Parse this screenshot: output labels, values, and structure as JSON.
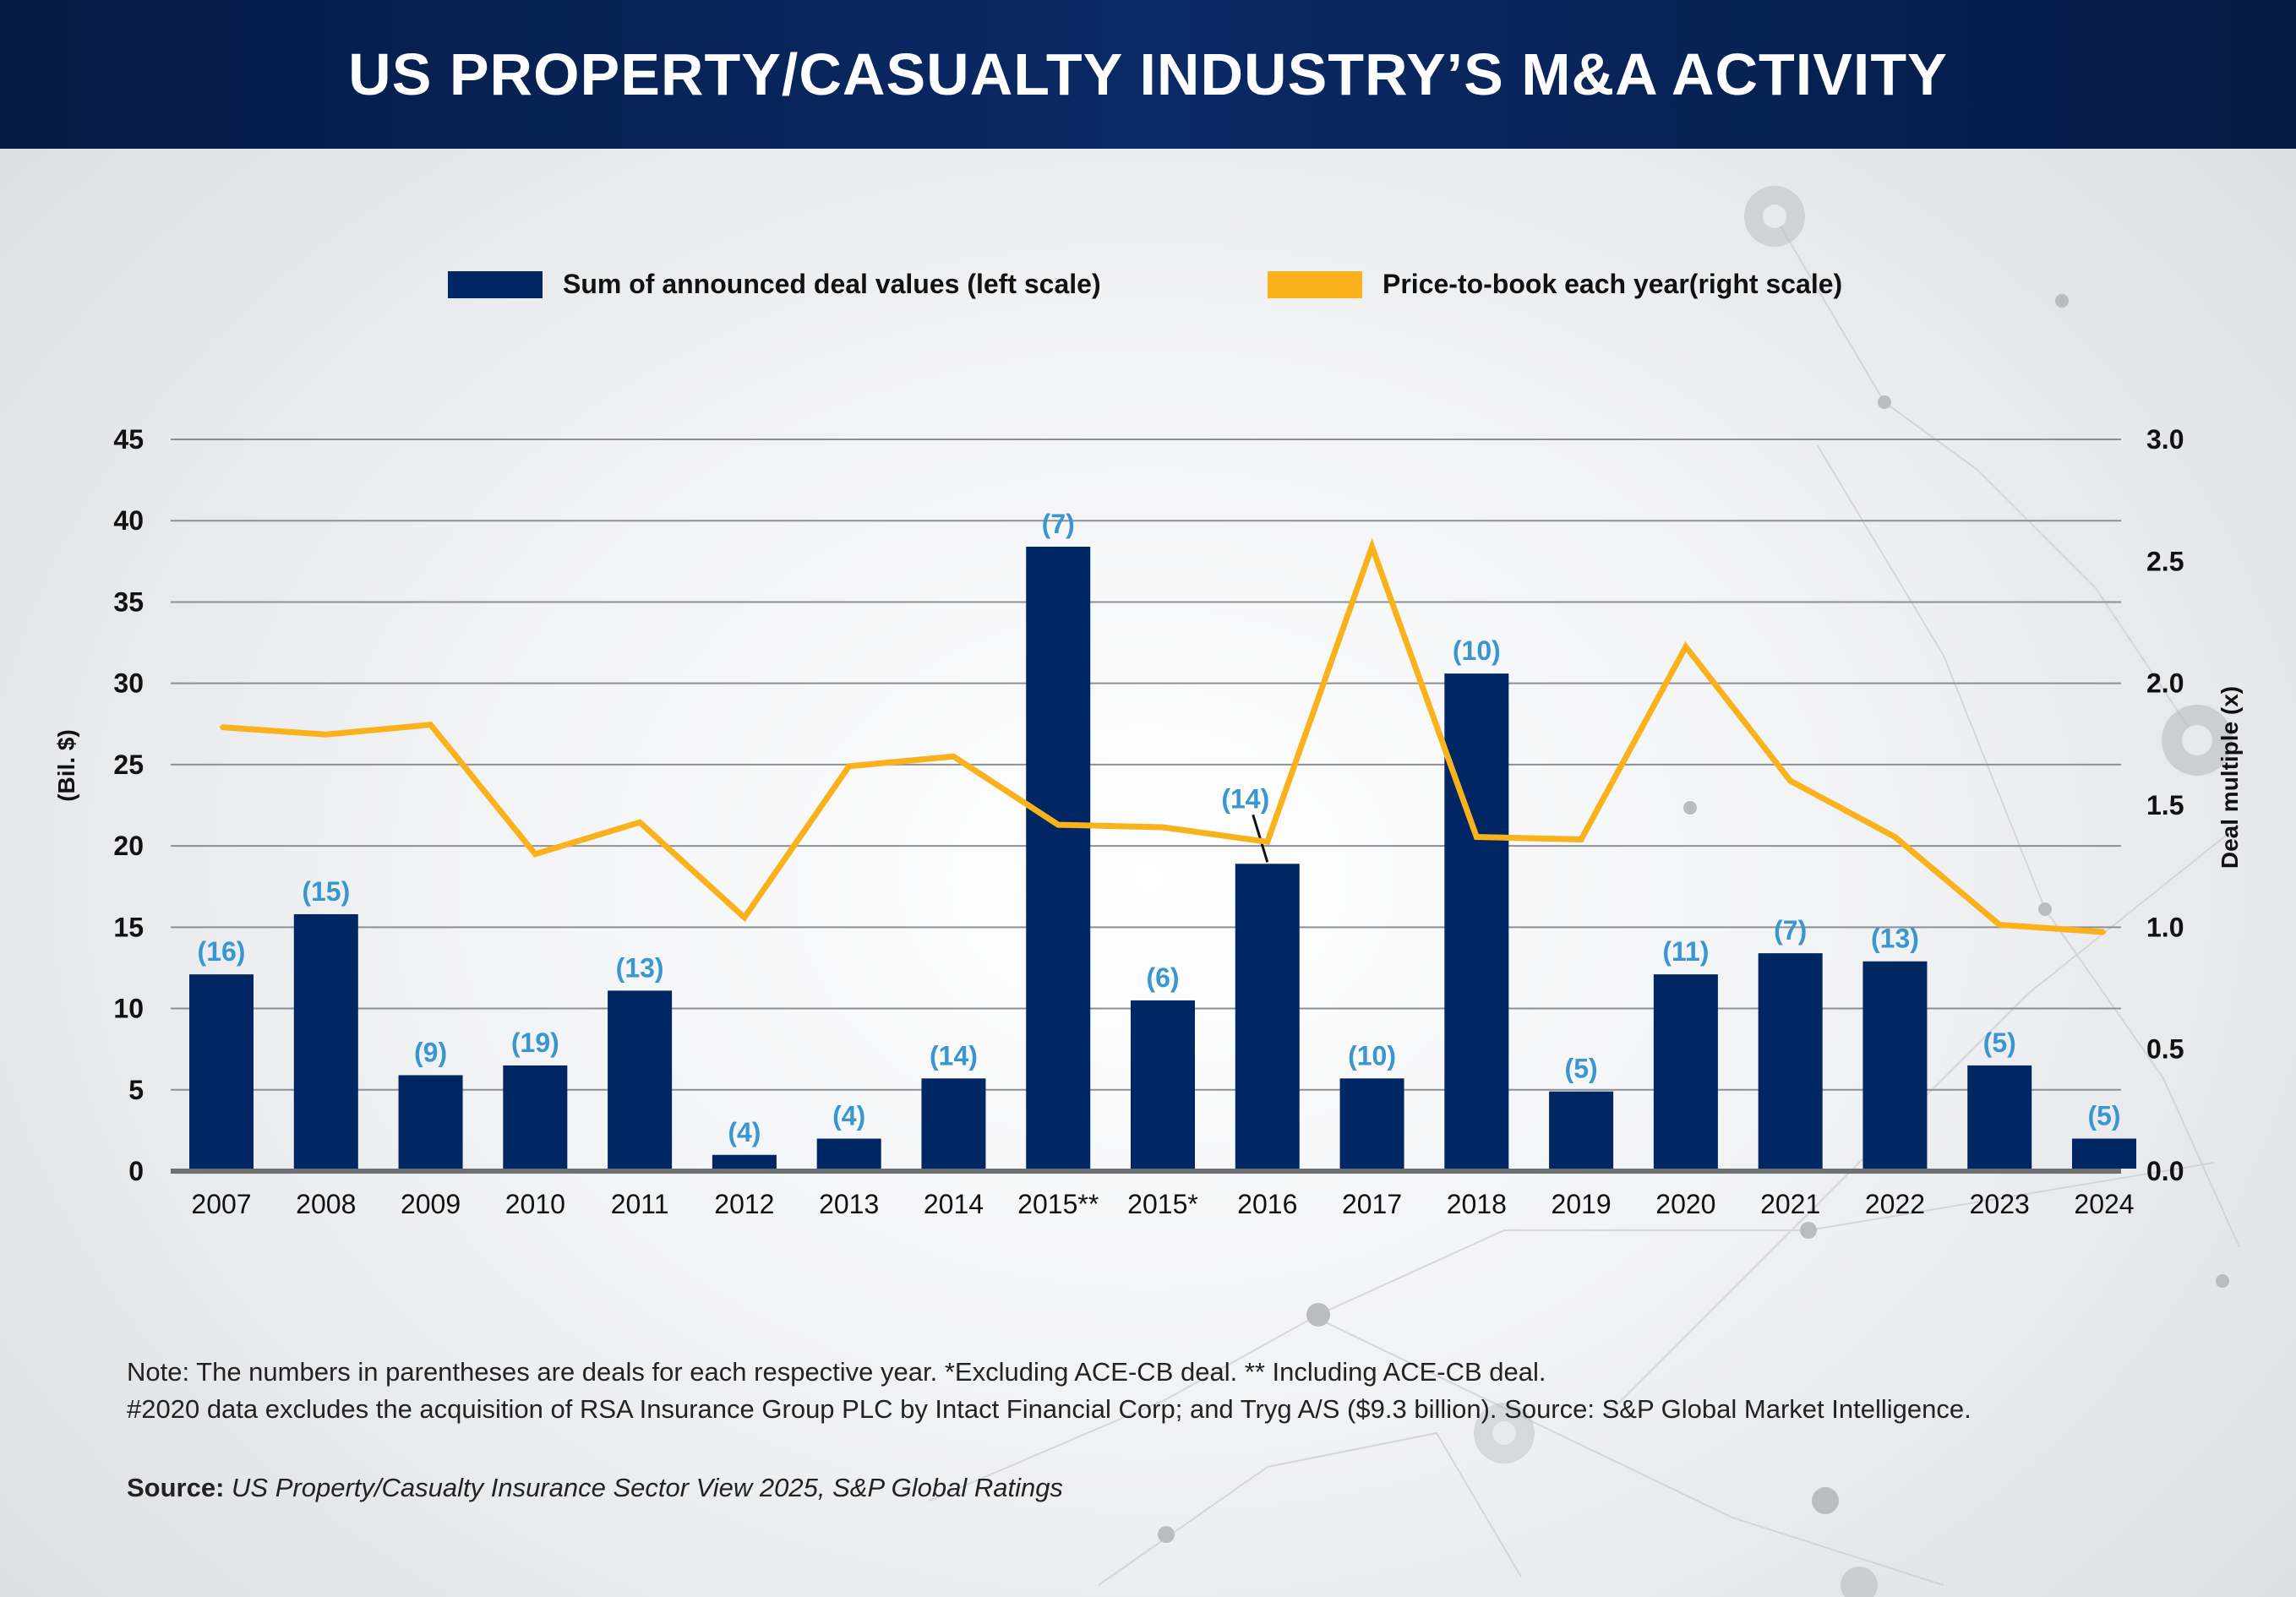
{
  "page": {
    "title": "US PROPERTY/CASUALTY INDUSTRY’S M&A ACTIVITY",
    "note_line1": "Note: The numbers in parentheses are deals for each respective year. *Excluding ACE-CB deal. ** Including ACE-CB deal.",
    "note_line2": "#2020 data excludes the acquisition of RSA Insurance Group PLC by Intact Financial Corp; and Tryg A/S ($9.3 billion). Source: S&P Global Market Intelligence.",
    "source_label": "Source:",
    "source_text": "US Property/Casualty Insurance Sector View 2025, S&P Global Ratings"
  },
  "colors": {
    "bar": "#002663",
    "line": "#f9b21b",
    "deal_label": "#3a96d1",
    "header": "#06204f"
  },
  "chart_data": {
    "type": "bar",
    "categories": [
      "2007",
      "2008",
      "2009",
      "2010",
      "2011",
      "2012",
      "2013",
      "2014",
      "2015**",
      "2015*",
      "2016",
      "2017",
      "2018",
      "2019",
      "2020",
      "2021",
      "2022",
      "2023",
      "2024"
    ],
    "series": [
      {
        "name": "Sum of announced deal values (left scale)",
        "type": "bar",
        "axis": "left",
        "values": [
          12.1,
          15.8,
          5.9,
          6.5,
          11.1,
          1.0,
          2.0,
          5.7,
          38.4,
          10.5,
          18.9,
          5.7,
          30.6,
          4.9,
          12.1,
          13.4,
          12.9,
          6.5,
          2.0
        ],
        "labels": [
          "(16)",
          "(15)",
          "(9)",
          "(19)",
          "(13)",
          "(4)",
          "(4)",
          "(14)",
          "(7)",
          "(6)",
          "(14)",
          "(10)",
          "(10)",
          "(5)",
          "(11)",
          "(7)",
          "(13)",
          "(5)",
          "(5)"
        ]
      },
      {
        "name": "Price-to-book each year(right scale)",
        "type": "line",
        "axis": "right",
        "values": [
          1.82,
          1.79,
          1.83,
          1.3,
          1.43,
          1.04,
          1.66,
          1.7,
          1.42,
          1.41,
          1.35,
          2.56,
          1.37,
          1.36,
          2.15,
          1.6,
          1.37,
          1.01,
          0.98
        ]
      }
    ],
    "ylabel": "(Bil. $)",
    "y2label": "Deal multiple (x)",
    "ylim": [
      0,
      45
    ],
    "yticks": [
      "0",
      "5",
      "10",
      "15",
      "20",
      "25",
      "30",
      "35",
      "40",
      "45"
    ],
    "y2lim": [
      0,
      3.0
    ],
    "y2ticks": [
      "0.0",
      "0.5",
      "1.0",
      "1.5",
      "2.0",
      "2.5",
      "3.0"
    ],
    "grid": true,
    "legend_position": "top"
  }
}
